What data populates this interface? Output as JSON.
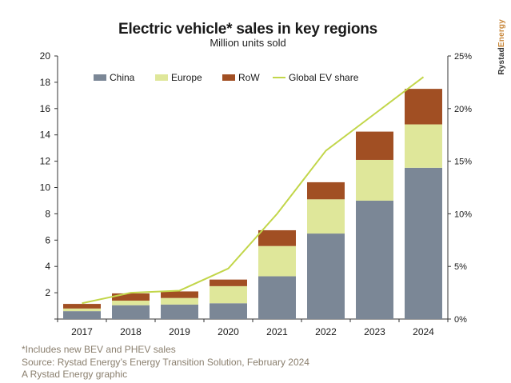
{
  "chart_data": {
    "type": "bar",
    "stacked": true,
    "title": "Electric vehicle* sales in key regions",
    "subtitle": "Million units sold",
    "categories": [
      "2017",
      "2018",
      "2019",
      "2020",
      "2021",
      "2022",
      "2023",
      "2024"
    ],
    "series": [
      {
        "name": "China",
        "color": "#7b8796",
        "values": [
          0.6,
          1.05,
          1.1,
          1.2,
          3.25,
          6.5,
          9.0,
          11.5
        ]
      },
      {
        "name": "Europe",
        "color": "#dfe79a",
        "values": [
          0.2,
          0.35,
          0.5,
          1.3,
          2.3,
          2.6,
          3.1,
          3.3
        ]
      },
      {
        "name": "RoW",
        "color": "#a14f23",
        "values": [
          0.35,
          0.55,
          0.5,
          0.5,
          1.2,
          1.3,
          2.15,
          2.7
        ]
      }
    ],
    "line_series": {
      "name": "Global EV share",
      "color": "#c2d64a",
      "axis": "right",
      "values": [
        1.5,
        2.5,
        2.7,
        4.8,
        10.0,
        16.0,
        19.5,
        23.0
      ]
    },
    "y_left": {
      "ylim": [
        0,
        20
      ],
      "ticks": [
        "",
        "2",
        "4",
        "6",
        "8",
        "10",
        "12",
        "14",
        "16",
        "18",
        "20"
      ]
    },
    "y_right": {
      "ylim": [
        0,
        25
      ],
      "ticks": [
        "0%",
        "5%",
        "10%",
        "15%",
        "20%",
        "25%"
      ]
    },
    "grid": false,
    "legend_placement": "top-left"
  },
  "notes": [
    "*Includes new BEV and PHEV sales",
    "Source: Rystad Energy’s Energy Transition Solution, February 2024",
    "A Rystad Energy graphic"
  ],
  "brand": {
    "part1": "Rystad",
    "part2": "Energy"
  }
}
